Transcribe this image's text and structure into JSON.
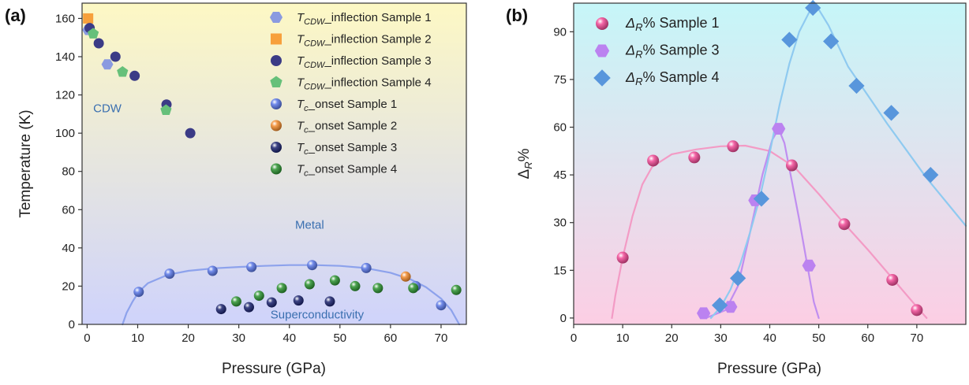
{
  "panels": {
    "a": {
      "label": "(a)"
    },
    "b": {
      "label": "(b)"
    }
  },
  "chart_data": [
    {
      "type": "scatter",
      "panel_label": "(a)",
      "xlabel": "Pressure (GPa)",
      "ylabel": "Temperature (K)",
      "xlim": [
        -1,
        75
      ],
      "ylim": [
        0,
        168
      ],
      "xticks": [
        0,
        10,
        20,
        30,
        40,
        50,
        60,
        70
      ],
      "yticks": [
        0,
        20,
        40,
        60,
        80,
        100,
        120,
        140,
        160
      ],
      "grid": false,
      "legend_position": "top-right",
      "region_labels": [
        {
          "text": "CDW",
          "x": 4,
          "y": 111
        },
        {
          "text": "Metal",
          "x": 44,
          "y": 50
        },
        {
          "text": "Superconductivity",
          "x": 45.5,
          "y": 3
        }
      ],
      "background_gradient": [
        "#fdf8c4",
        "#cfd3fb"
      ],
      "series": [
        {
          "name": "T_CDW_inflection Sample 1",
          "legend": {
            "main": "T",
            "sub": "CDW",
            "rest": "_inflection  Sample 1"
          },
          "marker": "hexagon",
          "color": "#8a9ae0",
          "x": [
            0.2,
            4
          ],
          "y": [
            154,
            136
          ]
        },
        {
          "name": "T_CDW_inflection Sample 2",
          "legend": {
            "main": "T",
            "sub": "CDW",
            "rest": "_inflection  Sample 2"
          },
          "marker": "square",
          "color": "#f7a03c",
          "x": [
            0.2
          ],
          "y": [
            160
          ]
        },
        {
          "name": "T_CDW_inflection Sample 3",
          "legend": {
            "main": "T",
            "sub": "CDW",
            "rest": "_inflection  Sample 3"
          },
          "marker": "circle",
          "color": "#3b3b86",
          "x": [
            0.5,
            2.3,
            5.6,
            9.4,
            15.7,
            20.4
          ],
          "y": [
            155,
            147,
            140,
            130,
            115,
            100
          ]
        },
        {
          "name": "T_CDW_inflection Sample 4",
          "legend": {
            "main": "T",
            "sub": "CDW",
            "rest": "_inflection  Sample 4"
          },
          "marker": "pentagon",
          "color": "#66c07a",
          "x": [
            1.2,
            7,
            15.6
          ],
          "y": [
            152,
            132,
            112
          ]
        },
        {
          "name": "T_c_onset Sample 1",
          "legend": {
            "main": "T",
            "sub": "c",
            "rest": "_onset  Sample 1"
          },
          "marker": "sphere",
          "color": "#5a78e8",
          "x": [
            10.2,
            16.3,
            24.8,
            32.5,
            44.5,
            55.2,
            65,
            70
          ],
          "y": [
            17,
            26.5,
            28,
            30,
            31,
            29.5,
            20,
            10
          ]
        },
        {
          "name": "T_c_onset Sample 2",
          "legend": {
            "main": "T",
            "sub": "c",
            "rest": "_onset  Sample 2"
          },
          "marker": "sphere",
          "color": "#f28a2c",
          "x": [
            63
          ],
          "y": [
            25
          ]
        },
        {
          "name": "T_c_onset Sample 3",
          "legend": {
            "main": "T",
            "sub": "c",
            "rest": "_onset  Sample 3"
          },
          "marker": "sphere",
          "color": "#1c2470",
          "x": [
            26.5,
            32,
            36.5,
            41.8,
            48
          ],
          "y": [
            8,
            9,
            11.5,
            12.5,
            12
          ]
        },
        {
          "name": "T_c_onset Sample 4",
          "legend": {
            "main": "T",
            "sub": "c",
            "rest": "_onset  Sample 4"
          },
          "marker": "sphere",
          "color": "#2d9432",
          "x": [
            29.5,
            34,
            38.5,
            44,
            49,
            53,
            57.5,
            64.5,
            73
          ],
          "y": [
            12,
            15,
            19,
            21,
            23,
            20,
            19,
            19,
            18
          ]
        }
      ],
      "fit_curves": [
        {
          "color": "#8da2ec",
          "x": [
            7,
            7.8,
            9,
            10.2,
            12,
            16,
            20,
            25,
            30,
            35,
            40,
            45,
            50,
            55,
            60,
            64,
            67,
            70,
            72,
            73.6
          ],
          "y": [
            0,
            6,
            12,
            17,
            21.5,
            26,
            28,
            29.3,
            30,
            30.6,
            31,
            31,
            30.6,
            29.5,
            27,
            23.5,
            19.5,
            13.5,
            7.5,
            0
          ]
        }
      ]
    },
    {
      "type": "scatter",
      "panel_label": "(b)",
      "xlabel": "Pressure (GPa)",
      "ylabel": "Δ_R%",
      "ylabel_parts": {
        "main": "Δ",
        "sub": "R",
        "rest": "%"
      },
      "xlim": [
        0,
        80
      ],
      "ylim": [
        -2,
        99
      ],
      "xticks": [
        0,
        10,
        20,
        30,
        40,
        50,
        60,
        70
      ],
      "yticks": [
        0,
        15,
        30,
        45,
        60,
        75,
        90
      ],
      "grid": false,
      "legend_position": "top-left",
      "background_gradient": [
        "#c6f6f8",
        "#fccee4"
      ],
      "series": [
        {
          "name": "Δ_R% Sample 1",
          "legend": {
            "main": "Δ",
            "sub": "R",
            "rest": "% Sample 1"
          },
          "marker": "sphere",
          "color": "#f24b97",
          "x": [
            10,
            16.2,
            24.6,
            32.5,
            44.5,
            55.2,
            65,
            70
          ],
          "y": [
            19,
            49.5,
            50.5,
            54,
            48,
            29.5,
            12,
            2.5
          ],
          "fit": {
            "color": "#f39bc5",
            "x": [
              7.8,
              8.5,
              10,
              12,
              14,
              16,
              20,
              25,
              30,
              35,
              40,
              45,
              50,
              55,
              60,
              65,
              70,
              72
            ],
            "y": [
              0,
              7,
              19,
              32,
              42,
              47.5,
              51.5,
              53,
              54,
              54.2,
              52.5,
              47.5,
              39,
              30,
              21.5,
              12.5,
              3.5,
              0
            ]
          }
        },
        {
          "name": "Δ_R% Sample 3",
          "legend": {
            "main": "Δ",
            "sub": "R",
            "rest": "% Sample 3"
          },
          "marker": "hexagon",
          "color": "#bb82f0",
          "x": [
            26.5,
            32,
            37,
            41.8,
            48
          ],
          "y": [
            1.5,
            3.5,
            37,
            59.5,
            16.5
          ],
          "fit": {
            "color": "#c08ef0",
            "x": [
              27,
              31,
              33.5,
              36,
              38.5,
              40.5,
              41.8,
              43,
              44.5,
              46,
              47.5,
              49,
              50
            ],
            "y": [
              0,
              2.5,
              10,
              27,
              45,
              56,
              59.5,
              55,
              43,
              31,
              18,
              5,
              0
            ]
          }
        },
        {
          "name": "Δ_R% Sample 4",
          "legend": {
            "main": "Δ",
            "sub": "R",
            "rest": "% Sample 4"
          },
          "marker": "diamond",
          "color": "#5896dc",
          "x": [
            29.8,
            33.5,
            38.3,
            44,
            48.8,
            52.5,
            57.7,
            64.8,
            72.8
          ],
          "y": [
            4,
            12.5,
            37.5,
            87.5,
            97.5,
            87,
            73,
            64.5,
            45
          ],
          "fit": {
            "color": "#8fcaf0",
            "x": [
              28,
              30,
              32,
              34,
              36,
              38,
              40,
              42,
              44,
              46,
              48,
              49,
              50,
              52,
              56,
              60,
              64,
              68,
              72,
              76,
              80
            ],
            "y": [
              0,
              3.5,
              9,
              17,
              27,
              38,
              52,
              67,
              80,
              90,
              96,
              97.5,
              97,
              92,
              79,
              70,
              61,
              52.5,
              44,
              36.5,
              29
            ]
          }
        }
      ]
    }
  ]
}
